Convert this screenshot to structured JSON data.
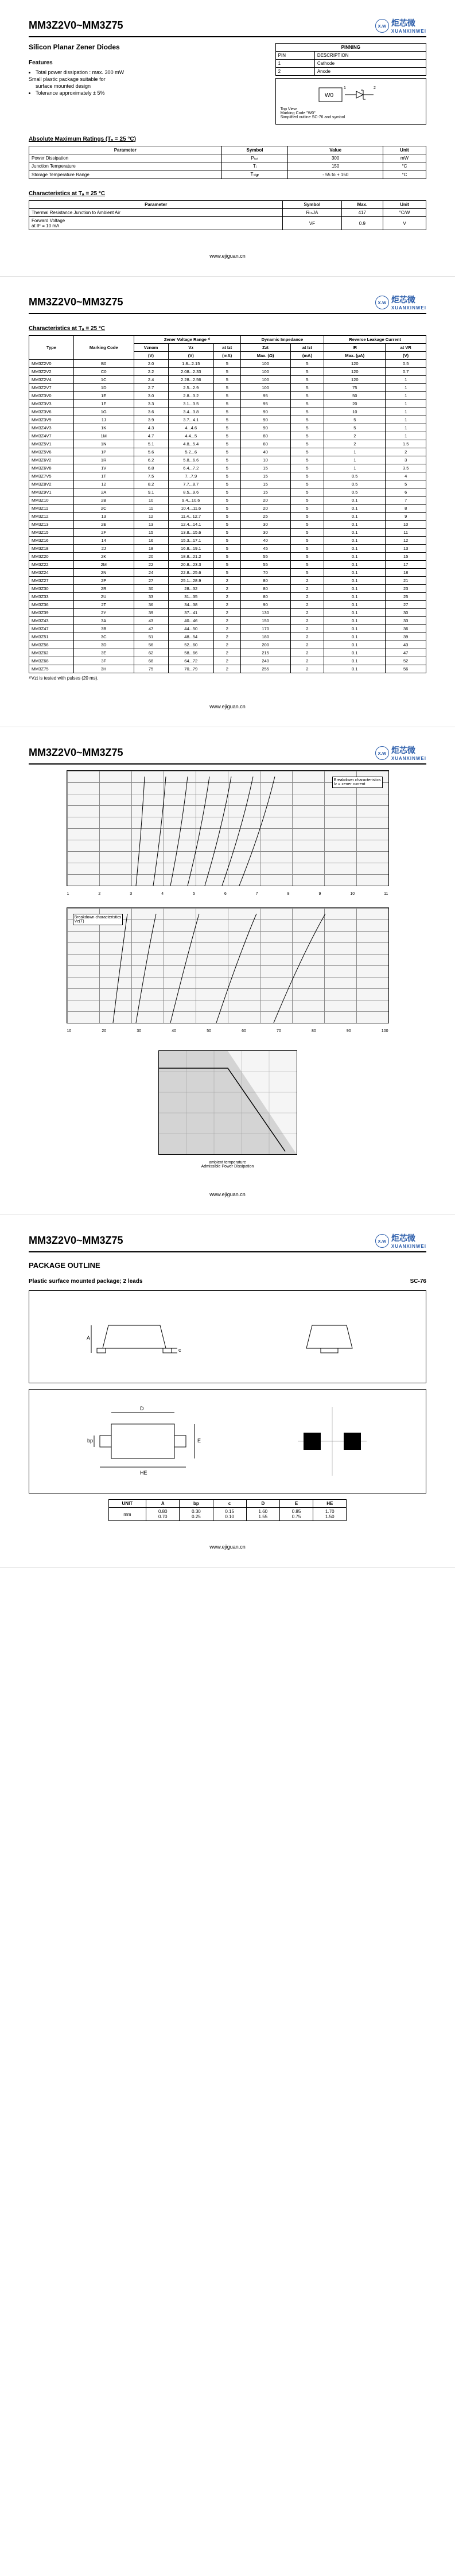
{
  "header": {
    "partNumber": "MM3Z2V0~MM3Z75",
    "logoText": "炬芯微",
    "logoSub": "XUANXINWEI",
    "logoIcon": "x.w"
  },
  "page1": {
    "subtitle": "Silicon Planar Zener Diodes",
    "featuresTitle": "Features",
    "features": [
      "Total power dissipation : max. 300 mW",
      "Small plastic package suitable for",
      "surface mounted design",
      "Tolerance approximately ± 5%"
    ],
    "pinningTitle": "PINNING",
    "pinHeaders": [
      "PIN",
      "DESCRIPTION"
    ],
    "pinRows": [
      [
        "1",
        "Cathode"
      ],
      [
        "2",
        "Anode"
      ]
    ],
    "markingNote1": "Top View",
    "markingNote2": "Marking Code \"W0\"",
    "markingNote3": "Simplified outline SC-76 and symbol",
    "markLabel": "W0",
    "absMaxTitle": "Absolute Maximum Ratings (Tₐ = 25 °C)",
    "absMaxHeaders": [
      "Parameter",
      "Symbol",
      "Value",
      "Unit"
    ],
    "absMaxRows": [
      [
        "Power Dissipation",
        "Pₜₒₜ",
        "300",
        "mW"
      ],
      [
        "Junction Temperature",
        "Tⱼ",
        "150",
        "°C"
      ],
      [
        "Storage Temperature Range",
        "Tₛₜ𝓰",
        "- 55 to + 150",
        "°C"
      ]
    ],
    "charTitle": "Characteristics at Tₐ = 25 °C",
    "charHeaders": [
      "Parameter",
      "Symbol",
      "Max.",
      "Unit"
    ],
    "charRows": [
      [
        "Thermal Resistance Junction to Ambient Air",
        "RₜₕJA",
        "417",
        "°C/W"
      ],
      [
        "Forward Voltage\nat IF = 10 mA",
        "VF",
        "0.9",
        "V"
      ]
    ]
  },
  "page2": {
    "charTitle": "Characteristics at Tₐ = 25 °C",
    "groupHeaders": [
      "Type",
      "Marking Code",
      "Zener Voltage Range ¹⁾",
      "Dynamic Impedance",
      "Reverse Leakage Current"
    ],
    "subHeaders": [
      "",
      "",
      "Vznom",
      "Vz",
      "at Izt",
      "Zzt",
      "at Izt",
      "IR",
      "at VR"
    ],
    "unitHeaders": [
      "",
      "",
      "(V)",
      "(V)",
      "(mA)",
      "Max. (Ω)",
      "(mA)",
      "Max. (μA)",
      "(V)"
    ],
    "rows": [
      [
        "MM3Z2V0",
        "B0",
        "2.0",
        "1.8...2.15",
        "5",
        "100",
        "5",
        "120",
        "0.5"
      ],
      [
        "MM3Z2V2",
        "C0",
        "2.2",
        "2.08...2.33",
        "5",
        "100",
        "5",
        "120",
        "0.7"
      ],
      [
        "MM3Z2V4",
        "1C",
        "2.4",
        "2.28...2.56",
        "5",
        "100",
        "5",
        "120",
        "1"
      ],
      [
        "MM3Z2V7",
        "1D",
        "2.7",
        "2.5...2.9",
        "5",
        "100",
        "5",
        "75",
        "1"
      ],
      [
        "MM3Z3V0",
        "1E",
        "3.0",
        "2.8...3.2",
        "5",
        "95",
        "5",
        "50",
        "1"
      ],
      [
        "MM3Z3V3",
        "1F",
        "3.3",
        "3.1...3.5",
        "5",
        "95",
        "5",
        "20",
        "1"
      ],
      [
        "MM3Z3V6",
        "1G",
        "3.6",
        "3.4...3.8",
        "5",
        "90",
        "5",
        "10",
        "1"
      ],
      [
        "MM3Z3V9",
        "1J",
        "3.9",
        "3.7...4.1",
        "5",
        "90",
        "5",
        "5",
        "1"
      ],
      [
        "MM3Z4V3",
        "1K",
        "4.3",
        "4...4.6",
        "5",
        "90",
        "5",
        "5",
        "1"
      ],
      [
        "MM3Z4V7",
        "1M",
        "4.7",
        "4.4...5",
        "5",
        "80",
        "5",
        "2",
        "1"
      ],
      [
        "MM3Z5V1",
        "1N",
        "5.1",
        "4.8...5.4",
        "5",
        "60",
        "5",
        "2",
        "1.5"
      ],
      [
        "MM3Z5V6",
        "1P",
        "5.6",
        "5.2...6",
        "5",
        "40",
        "5",
        "1",
        "2"
      ],
      [
        "MM3Z6V2",
        "1R",
        "6.2",
        "5.8...6.6",
        "5",
        "10",
        "5",
        "1",
        "3"
      ],
      [
        "MM3Z6V8",
        "1V",
        "6.8",
        "6.4...7.2",
        "5",
        "15",
        "5",
        "1",
        "3.5"
      ],
      [
        "MM3Z7V5",
        "1T",
        "7.5",
        "7...7.9",
        "5",
        "15",
        "5",
        "0.5",
        "4"
      ],
      [
        "MM3Z8V2",
        "12",
        "8.2",
        "7.7...8.7",
        "5",
        "15",
        "5",
        "0.5",
        "5"
      ],
      [
        "MM3Z9V1",
        "2A",
        "9.1",
        "8.5...9.6",
        "5",
        "15",
        "5",
        "0.5",
        "6"
      ],
      [
        "MM3Z10",
        "2B",
        "10",
        "9.4...10.6",
        "5",
        "20",
        "5",
        "0.1",
        "7"
      ],
      [
        "MM3Z11",
        "2C",
        "11",
        "10.4...11.6",
        "5",
        "20",
        "5",
        "0.1",
        "8"
      ],
      [
        "MM3Z12",
        "13",
        "12",
        "11.4...12.7",
        "5",
        "25",
        "5",
        "0.1",
        "9"
      ],
      [
        "MM3Z13",
        "2E",
        "13",
        "12.4...14.1",
        "5",
        "30",
        "5",
        "0.1",
        "10"
      ],
      [
        "MM3Z15",
        "2F",
        "15",
        "13.8...15.6",
        "5",
        "30",
        "5",
        "0.1",
        "11"
      ],
      [
        "MM3Z16",
        "14",
        "16",
        "15.3...17.1",
        "5",
        "40",
        "5",
        "0.1",
        "12"
      ],
      [
        "MM3Z18",
        "2J",
        "18",
        "16.8...19.1",
        "5",
        "45",
        "5",
        "0.1",
        "13"
      ],
      [
        "MM3Z20",
        "2K",
        "20",
        "18.8...21.2",
        "5",
        "55",
        "5",
        "0.1",
        "15"
      ],
      [
        "MM3Z22",
        "2M",
        "22",
        "20.8...23.3",
        "5",
        "55",
        "5",
        "0.1",
        "17"
      ],
      [
        "MM3Z24",
        "2N",
        "24",
        "22.8...25.6",
        "5",
        "70",
        "5",
        "0.1",
        "18"
      ],
      [
        "MM3Z27",
        "2P",
        "27",
        "25.1...28.9",
        "2",
        "80",
        "2",
        "0.1",
        "21"
      ],
      [
        "MM3Z30",
        "2R",
        "30",
        "28...32",
        "2",
        "80",
        "2",
        "0.1",
        "23"
      ],
      [
        "MM3Z33",
        "2U",
        "33",
        "31...35",
        "2",
        "80",
        "2",
        "0.1",
        "25"
      ],
      [
        "MM3Z36",
        "2T",
        "36",
        "34...38",
        "2",
        "90",
        "2",
        "0.1",
        "27"
      ],
      [
        "MM3Z39",
        "2Y",
        "39",
        "37...41",
        "2",
        "130",
        "2",
        "0.1",
        "30"
      ],
      [
        "MM3Z43",
        "3A",
        "43",
        "40...46",
        "2",
        "150",
        "2",
        "0.1",
        "33"
      ],
      [
        "MM3Z47",
        "3B",
        "47",
        "44...50",
        "2",
        "170",
        "2",
        "0.1",
        "36"
      ],
      [
        "MM3Z51",
        "3C",
        "51",
        "48...54",
        "2",
        "180",
        "2",
        "0.1",
        "39"
      ],
      [
        "MM3Z56",
        "3D",
        "56",
        "52...60",
        "2",
        "200",
        "2",
        "0.1",
        "43"
      ],
      [
        "MM3Z62",
        "3E",
        "62",
        "58...66",
        "2",
        "215",
        "2",
        "0.1",
        "47"
      ],
      [
        "MM3Z68",
        "3F",
        "68",
        "64...72",
        "2",
        "240",
        "2",
        "0.1",
        "52"
      ],
      [
        "MM3Z75",
        "3H",
        "75",
        "70...79",
        "2",
        "255",
        "2",
        "0.1",
        "56"
      ]
    ],
    "note": "¹⁾Vzt is tested with pulses (20 ms)."
  },
  "page3": {
    "chart1Label": "Breakdown characteristics\nIz = zener current",
    "chart2Label": "Breakdown characteristics\nVz(T)",
    "chart3Label1": "Admissible Power Dissipation",
    "chart3Label2": "ambient temperature"
  },
  "page4": {
    "title": "PACKAGE OUTLINE",
    "subtitle": "Plastic surface mounted package; 2 leads",
    "pkgType": "SC-76",
    "dimHeaders": [
      "UNIT",
      "A",
      "bp",
      "c",
      "D",
      "E",
      "HE"
    ],
    "dimRows": [
      [
        "mm",
        "0.80\n0.70",
        "0.30\n0.25",
        "0.15\n0.10",
        "1.60\n1.55",
        "0.85\n0.75",
        "1.70\n1.50"
      ]
    ]
  },
  "footer": "www.ejiguan.cn"
}
